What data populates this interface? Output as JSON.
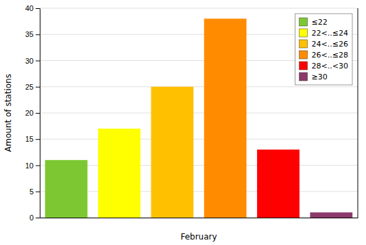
{
  "chart_data": {
    "type": "bar",
    "categories": [
      "≤22",
      "22<..≤24",
      "24<..≤26",
      "26<..≤28",
      "28<..<30",
      "≥30"
    ],
    "values": [
      11,
      17,
      25,
      38,
      13,
      1
    ],
    "colors": [
      "#7dc832",
      "#ffff00",
      "#ffc000",
      "#ff8c00",
      "#ff0000",
      "#8b3a6b"
    ],
    "xlabel": "February",
    "ylabel": "Amount of stations",
    "ylim": [
      0,
      40
    ],
    "yticks": [
      0,
      5,
      10,
      15,
      20,
      25,
      30,
      35,
      40
    ],
    "grid": true,
    "legend": "upper right",
    "tick_labels": "y"
  }
}
